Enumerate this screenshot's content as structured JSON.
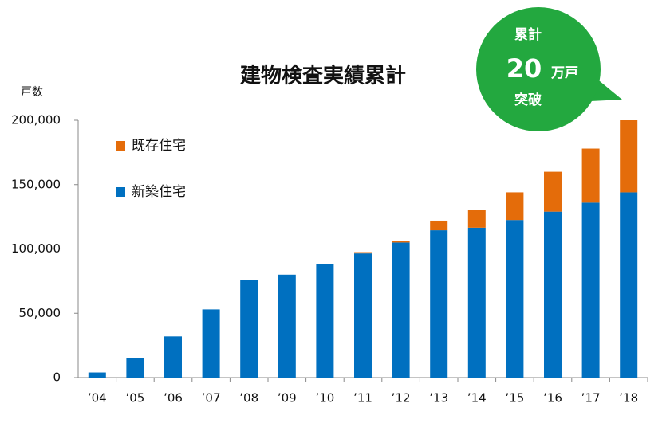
{
  "chart_data": {
    "type": "stacked_bar",
    "title": "建物検査実績累計",
    "y_label": "戸数",
    "categories": [
      "’04",
      "’05",
      "’06",
      "’07",
      "’08",
      "’09",
      "’10",
      "’11",
      "’12",
      "’13",
      "’14",
      "’15",
      "’16",
      "’17",
      "’18"
    ],
    "series": [
      {
        "name": "新築住宅",
        "color": "#0070c0",
        "values": [
          4000,
          15000,
          32000,
          53000,
          76000,
          80000,
          88500,
          96500,
          105000,
          114500,
          116500,
          122500,
          129000,
          136000,
          144000
        ]
      },
      {
        "name": "既存住宅",
        "color": "#e46c0a",
        "values": [
          0,
          0,
          0,
          0,
          0,
          0,
          0,
          1000,
          1000,
          7500,
          14000,
          21500,
          31000,
          42000,
          56000
        ]
      }
    ],
    "ylim": [
      0,
      200000
    ],
    "yticks": [
      0,
      {
        "value": 50000,
        "label": "50,000"
      },
      {
        "value": 100000,
        "label": "100,000"
      },
      {
        "value": 150000,
        "label": "150,000"
      },
      {
        "value": 200000,
        "label": "200,000"
      }
    ],
    "callout": {
      "line1": "累計",
      "number": "20",
      "unit": "万戸",
      "line2": "突破",
      "color": "#23a83f"
    }
  }
}
